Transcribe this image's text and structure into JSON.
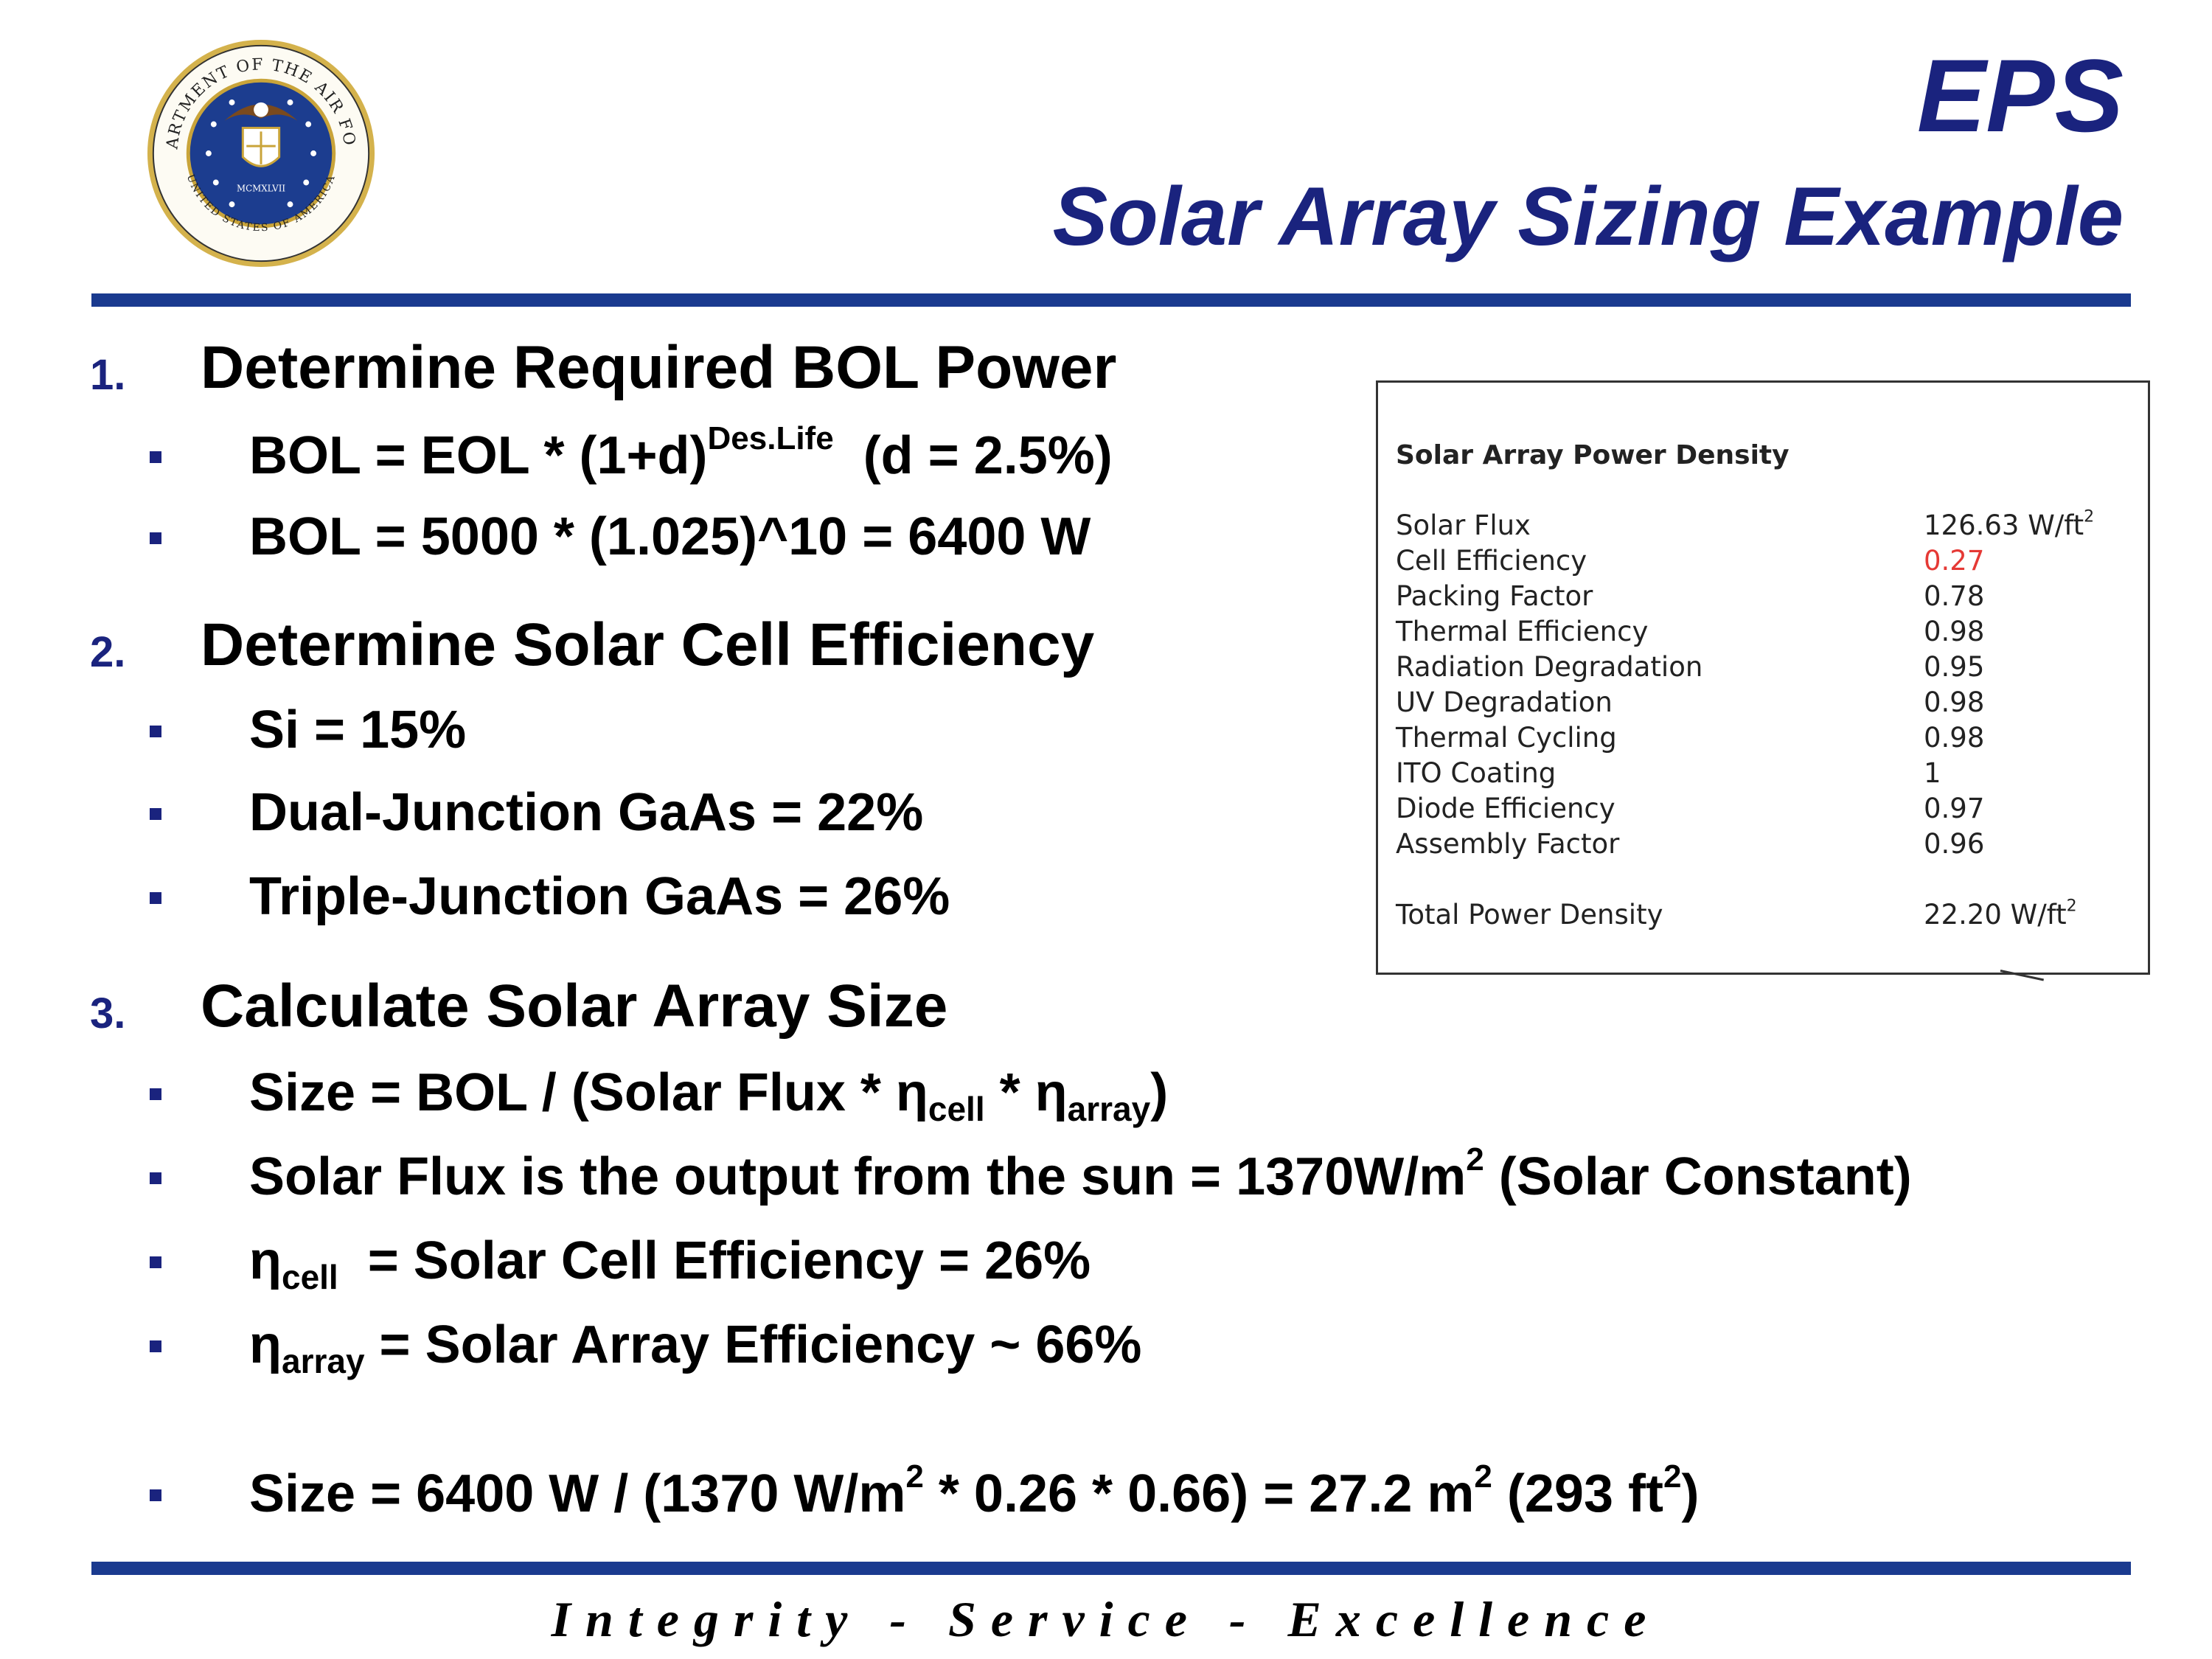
{
  "header": {
    "title_main": "EPS",
    "title_sub": "Solar Array Sizing Example",
    "seal_text_top": "DEPARTMENT OF THE AIR FORCE",
    "seal_text_bottom": "UNITED STATES OF AMERICA",
    "seal_year": "MCMXLVII"
  },
  "section1": {
    "number": "1.",
    "heading": "Determine Required BOL Power",
    "items": {
      "formula_pre": "BOL = EOL * (1+d)",
      "formula_sup": "Des.Life",
      "formula_post": "(d = 2.5%)",
      "calc": "BOL = 5000 * (1.025)^10 = 6400 W"
    }
  },
  "section2": {
    "number": "2.",
    "heading": "Determine Solar Cell Efficiency",
    "items": [
      "Si = 15%",
      "Dual-Junction GaAs = 22%",
      "Triple-Junction GaAs = 26%"
    ]
  },
  "section3": {
    "number": "3.",
    "heading": "Calculate Solar Array Size",
    "size_formula": {
      "a": "Size = BOL / (Solar Flux * η",
      "s1": "cell",
      "b": " * η",
      "s2": "array",
      "c": ")"
    },
    "flux": {
      "a": "Solar Flux is the output from the sun = 1370W/m",
      "sup": "2",
      "b": " (Solar Constant)"
    },
    "eta_cell": {
      "eta": "η",
      "sub": "cell",
      "text": "  = Solar Cell Efficiency = 26%"
    },
    "eta_array": {
      "eta": "η",
      "sub": "array",
      "text": " = Solar Array Efficiency ~ 66%"
    },
    "result": {
      "a": "Size = 6400 W / (1370 W/m",
      "s1": "2",
      "b": " * 0.26 * 0.66) = 27.2 m",
      "s2": "2",
      "c": " (293 ft",
      "s3": "2",
      "d": ")"
    }
  },
  "power_table": {
    "title": "Solar Array Power Density",
    "rows": [
      {
        "label": "Solar Flux",
        "value": "126.63 W/ft",
        "sup": "2"
      },
      {
        "label": "Cell Efficiency",
        "value": "0.27",
        "highlight": "#e53935"
      },
      {
        "label": "Packing Factor",
        "value": "0.78"
      },
      {
        "label": "Thermal Efficiency",
        "value": "0.98"
      },
      {
        "label": "Radiation Degradation",
        "value": "0.95"
      },
      {
        "label": "UV Degradation",
        "value": "0.98"
      },
      {
        "label": "Thermal Cycling",
        "value": "0.98"
      },
      {
        "label": "ITO Coating",
        "value": "1"
      },
      {
        "label": "Diode Efficiency",
        "value": "0.97"
      },
      {
        "label": "Assembly Factor",
        "value": "0.96"
      }
    ],
    "total": {
      "label": "Total Power Density",
      "value": "22.20 W/ft",
      "sup": "2"
    }
  },
  "footer": {
    "motto": "Integrity - Service - Excellence"
  },
  "colors": {
    "navy": "#1a237e",
    "rule": "#1a3a8f",
    "highlight_red": "#e53935"
  }
}
